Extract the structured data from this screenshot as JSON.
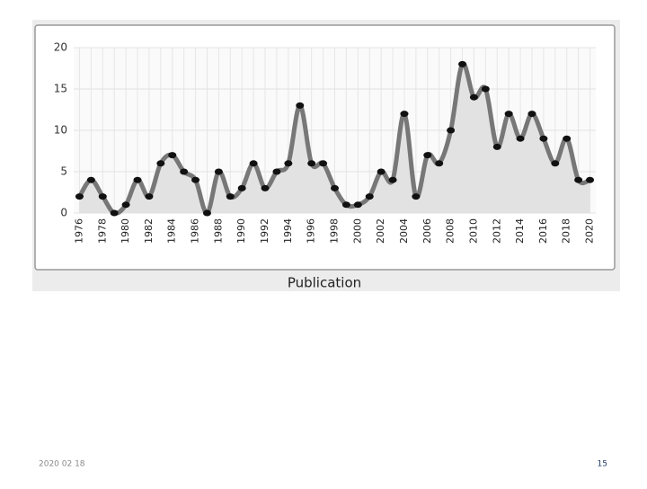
{
  "chart_data": {
    "type": "line",
    "x_label": "Publication",
    "x": [
      1976,
      1977,
      1978,
      1979,
      1980,
      1981,
      1982,
      1983,
      1984,
      1985,
      1986,
      1987,
      1988,
      1989,
      1990,
      1991,
      1992,
      1993,
      1994,
      1995,
      1996,
      1997,
      1998,
      1999,
      2000,
      2001,
      2002,
      2003,
      2004,
      2005,
      2006,
      2007,
      2008,
      2009,
      2010,
      2011,
      2012,
      2013,
      2014,
      2015,
      2016,
      2017,
      2018,
      2019,
      2020
    ],
    "values": [
      2,
      4,
      2,
      0,
      1,
      4,
      2,
      6,
      7,
      5,
      4,
      0,
      5,
      2,
      3,
      6,
      3,
      5,
      6,
      13,
      6,
      6,
      3,
      1,
      1,
      2,
      5,
      4,
      12,
      2,
      7,
      6,
      10,
      18,
      14,
      15,
      8,
      12,
      9,
      12,
      9,
      6,
      9,
      4,
      4
    ],
    "color": "#777777",
    "marker_color": "#111111",
    "fill": "#e2e2e2",
    "xlim": [
      1975.5,
      2020.5
    ],
    "xticks": [
      1976,
      1978,
      1980,
      1982,
      1984,
      1986,
      1988,
      1990,
      1992,
      1994,
      1996,
      1998,
      2000,
      2002,
      2004,
      2006,
      2008,
      2010,
      2012,
      2014,
      2016,
      2018,
      2020
    ],
    "ylim": [
      0,
      20
    ],
    "yticks": [
      0,
      5,
      10,
      15,
      20
    ],
    "grid": true
  },
  "footer": {
    "date": "2020 02 18",
    "page_number": "15"
  }
}
